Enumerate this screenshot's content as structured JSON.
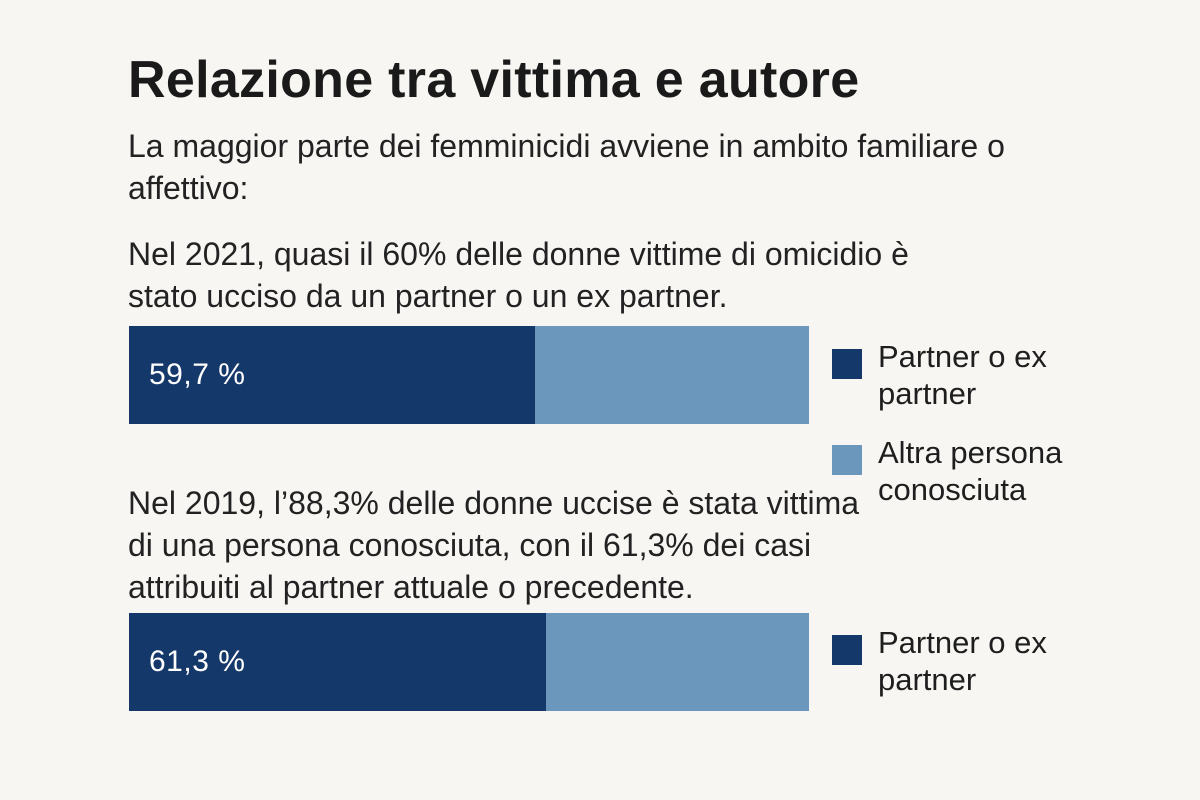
{
  "title": "Relazione tra vittima e autore",
  "subtitle": "La maggior parte dei femminicidi avviene in ambito familiare o affettivo:",
  "note_2021": "Nel 2021, quasi il 60% delle donne vittime di omicidio è stato ucciso da un partner o un ex partner.",
  "note_2019": "Nel 2019, l’88,3% delle donne uccise è stata vittima di una persona conosciuta, con il 61,3% dei casi attribuiti al partner attuale o precedente.",
  "colors": {
    "partner": "#15386a",
    "other": "#6b97bd",
    "background": "#f7f6f3"
  },
  "chart_data": [
    {
      "type": "bar",
      "orientation": "horizontal-stacked",
      "year": "2021",
      "total": 100,
      "series": [
        {
          "name": "Partner o ex partner",
          "value": 59.7,
          "label": "59,7 %",
          "color": "#15386a"
        },
        {
          "name": "Altra persona conosciuta",
          "value": 40.3,
          "label": "",
          "color": "#6b97bd"
        }
      ],
      "legend": [
        "Partner o ex partner",
        "Altra persona conosciuta"
      ],
      "legend_position": "right"
    },
    {
      "type": "bar",
      "orientation": "horizontal-stacked",
      "year": "2019",
      "total": 100,
      "series": [
        {
          "name": "Partner o ex partner",
          "value": 61.3,
          "label": "61,3 %",
          "color": "#15386a"
        },
        {
          "name": "",
          "value": 38.7,
          "label": "",
          "color": "#6b97bd"
        }
      ],
      "legend": [
        "Partner o ex partner"
      ],
      "legend_position": "right"
    }
  ]
}
